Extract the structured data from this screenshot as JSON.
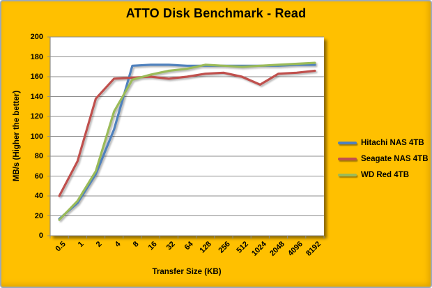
{
  "colors": {
    "background": "#FFC000",
    "border": "#9DA9B7",
    "plot_background": "#FFFFFF",
    "gridline": "#8C8C8C",
    "axis": "#8C8C8C",
    "text": "#000000"
  },
  "chart_data": {
    "type": "line",
    "title": "ATTO Disk Benchmark - Read",
    "xlabel": "Transfer Size (KB)",
    "ylabel": "MB/s (Higher the better)",
    "categories": [
      "0.5",
      "1",
      "2",
      "4",
      "8",
      "16",
      "32",
      "64",
      "128",
      "256",
      "512",
      "1024",
      "2048",
      "4096",
      "8192"
    ],
    "ylim": [
      0,
      200
    ],
    "ytick_step": 20,
    "grid": true,
    "legend_position": "right",
    "series": [
      {
        "name": "Hitachi NAS 4TB",
        "color": "#4F81BD",
        "values": [
          17,
          33,
          62,
          107,
          171,
          172,
          172,
          171,
          171,
          171,
          171,
          171,
          171,
          172,
          172
        ]
      },
      {
        "name": "Seagate NAS 4TB",
        "color": "#C0504D",
        "values": [
          40,
          75,
          138,
          158,
          159,
          160,
          158,
          160,
          163,
          164,
          160,
          152,
          163,
          164,
          166
        ]
      },
      {
        "name": "WD Red 4TB",
        "color": "#9BBB59",
        "values": [
          16,
          35,
          65,
          125,
          157,
          162,
          166,
          168,
          172,
          171,
          170,
          171,
          172,
          173,
          174
        ]
      }
    ]
  }
}
